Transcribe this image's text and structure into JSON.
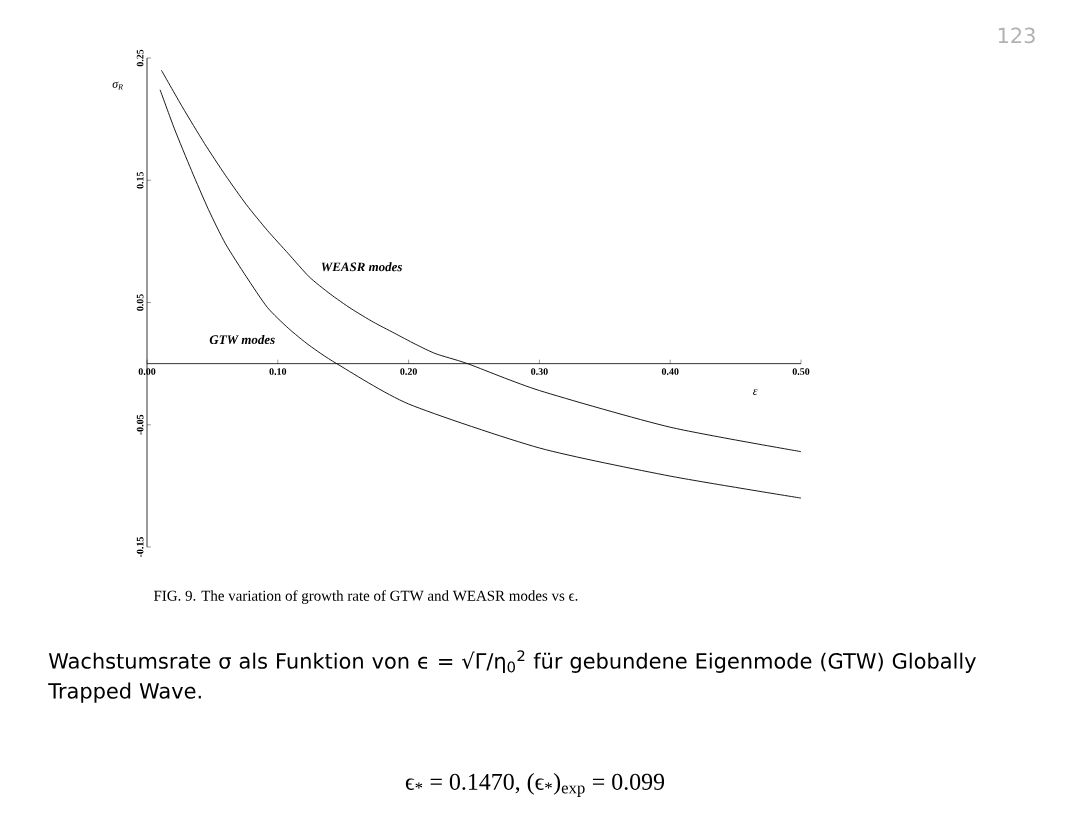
{
  "chart_data": {
    "type": "line",
    "xlabel": "ε",
    "ylabel": "σ$_{R}$",
    "xlim": [
      0,
      0.5
    ],
    "ylim": [
      -0.15,
      0.25
    ],
    "xticks": [
      {
        "value": 0,
        "label": "0.00"
      },
      {
        "value": 0.1,
        "label": "0.10"
      },
      {
        "value": 0.2,
        "label": "0.20"
      },
      {
        "value": 0.3,
        "label": "0.30"
      },
      {
        "value": 0.4,
        "label": "0.40"
      },
      {
        "value": 0.5,
        "label": "0.50"
      }
    ],
    "yticks": [
      {
        "value": -0.15,
        "label": "-0.15"
      },
      {
        "value": -0.05,
        "label": "-0.05"
      },
      {
        "value": 0.05,
        "label": "0.05"
      },
      {
        "value": 0.15,
        "label": "0.15"
      },
      {
        "value": 0.25,
        "label": "0.25"
      }
    ],
    "series": [
      {
        "name": "WEASR modes",
        "color": "#000000",
        "x": [
          0.011,
          0.027,
          0.044,
          0.06,
          0.076,
          0.092,
          0.108,
          0.124,
          0.14,
          0.156,
          0.173,
          0.189,
          0.205,
          0.221,
          0.245,
          0.3,
          0.4,
          0.5
        ],
        "values": [
          0.24,
          0.21,
          0.18,
          0.154,
          0.13,
          0.109,
          0.09,
          0.071,
          0.057,
          0.045,
          0.034,
          0.025,
          0.016,
          0.008,
          0,
          -0.022,
          -0.052,
          -0.072
        ]
      },
      {
        "name": "GTW modes",
        "color": "#000000",
        "x": [
          0.01,
          0.021,
          0.034,
          0.047,
          0.06,
          0.076,
          0.092,
          0.108,
          0.124,
          0.145,
          0.2,
          0.3,
          0.4,
          0.5
        ],
        "values": [
          0.224,
          0.192,
          0.158,
          0.126,
          0.098,
          0.071,
          0.046,
          0.029,
          0.015,
          0,
          -0.033,
          -0.069,
          -0.092,
          -0.11
        ]
      }
    ],
    "marker": "none",
    "line_style": "solid",
    "grid": false,
    "legend": false,
    "annotations": [
      "123",
      "FIG. 9.  The variation of growth rate of GTW and WEASR modes vs ϵ.",
      "Wachstumsrate σ als Funktion von ϵ = √Γ/η$_{0}$$^{2}$ für gebundene Eigenmode (GTW) Globally Trapped Wave.",
      "ϵ$_{*}$ = 0.1470,      (ϵ$_{*}$)$_{exp}$ = 0.099"
    ]
  }
}
